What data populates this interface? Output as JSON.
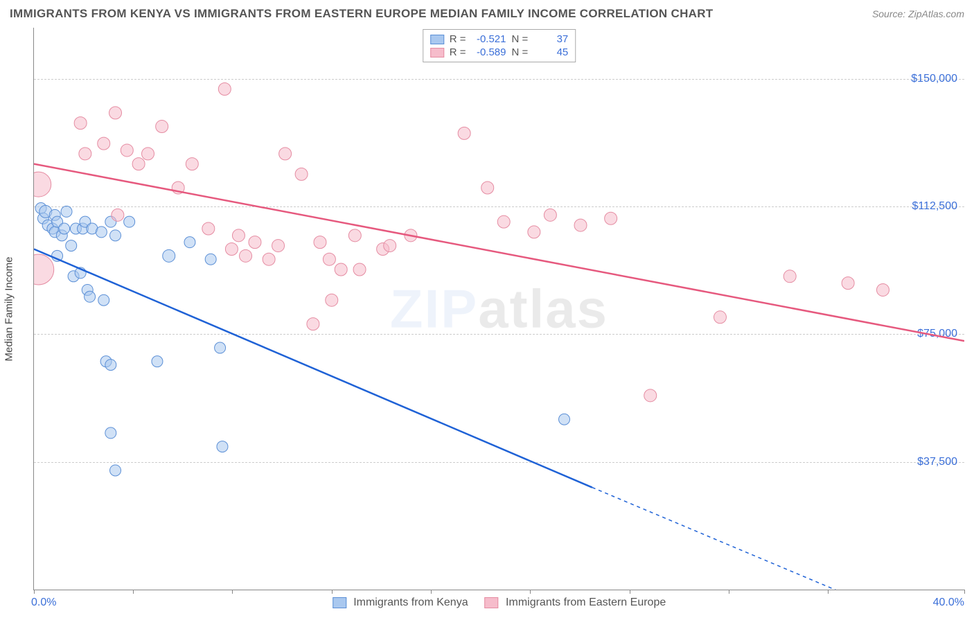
{
  "title": "IMMIGRANTS FROM KENYA VS IMMIGRANTS FROM EASTERN EUROPE MEDIAN FAMILY INCOME CORRELATION CHART",
  "source": "Source: ZipAtlas.com",
  "watermark_a": "ZIP",
  "watermark_b": "atlas",
  "y_axis_title": "Median Family Income",
  "x_min_label": "0.0%",
  "x_max_label": "40.0%",
  "chart": {
    "type": "scatter",
    "xlim": [
      0,
      40
    ],
    "ylim": [
      0,
      165000
    ],
    "y_ticks": [
      37500,
      75000,
      112500,
      150000
    ],
    "y_tick_labels": [
      "$37,500",
      "$75,000",
      "$112,500",
      "$150,000"
    ],
    "x_ticks": [
      0,
      4.27,
      8.53,
      12.8,
      17.07,
      21.33,
      25.6,
      29.87,
      34.13,
      40
    ],
    "grid_color": "#cccccc",
    "axis_color": "#888888",
    "background_color": "#ffffff",
    "title_fontsize": 17,
    "label_fontsize": 16,
    "tick_label_color": "#3b6fd8",
    "series": [
      {
        "name": "Immigrants from Kenya",
        "color_fill": "#a9c8ef",
        "color_stroke": "#5b8fd6",
        "fill_opacity": 0.55,
        "marker_radius": 8,
        "regression": {
          "x1": 0,
          "y1": 100000,
          "x2": 24,
          "y2": 30000,
          "extend_x2": 40,
          "extend_y2": -16000,
          "line_width": 2.5,
          "color": "#1f62d6",
          "dash_extension": "5,5"
        },
        "stats": {
          "r": "-0.521",
          "n": "37"
        },
        "points": [
          {
            "x": 0.3,
            "y": 112000,
            "r": 8
          },
          {
            "x": 0.4,
            "y": 109000,
            "r": 8
          },
          {
            "x": 0.5,
            "y": 111000,
            "r": 9
          },
          {
            "x": 0.6,
            "y": 107000,
            "r": 8
          },
          {
            "x": 0.8,
            "y": 106000,
            "r": 8
          },
          {
            "x": 0.9,
            "y": 110000,
            "r": 8
          },
          {
            "x": 0.9,
            "y": 105000,
            "r": 8
          },
          {
            "x": 1.0,
            "y": 108000,
            "r": 8
          },
          {
            "x": 1.2,
            "y": 104000,
            "r": 8
          },
          {
            "x": 1.3,
            "y": 106000,
            "r": 8
          },
          {
            "x": 1.4,
            "y": 111000,
            "r": 8
          },
          {
            "x": 1.6,
            "y": 101000,
            "r": 8
          },
          {
            "x": 1.8,
            "y": 106000,
            "r": 8
          },
          {
            "x": 2.1,
            "y": 106000,
            "r": 8
          },
          {
            "x": 2.2,
            "y": 108000,
            "r": 8
          },
          {
            "x": 2.5,
            "y": 106000,
            "r": 8
          },
          {
            "x": 2.9,
            "y": 105000,
            "r": 8
          },
          {
            "x": 3.3,
            "y": 108000,
            "r": 8
          },
          {
            "x": 3.5,
            "y": 104000,
            "r": 8
          },
          {
            "x": 4.1,
            "y": 108000,
            "r": 8
          },
          {
            "x": 1.0,
            "y": 98000,
            "r": 8
          },
          {
            "x": 1.7,
            "y": 92000,
            "r": 8
          },
          {
            "x": 2.0,
            "y": 93000,
            "r": 8
          },
          {
            "x": 2.3,
            "y": 88000,
            "r": 8
          },
          {
            "x": 2.4,
            "y": 86000,
            "r": 8
          },
          {
            "x": 3.0,
            "y": 85000,
            "r": 8
          },
          {
            "x": 5.8,
            "y": 98000,
            "r": 9
          },
          {
            "x": 6.7,
            "y": 102000,
            "r": 8
          },
          {
            "x": 7.6,
            "y": 97000,
            "r": 8
          },
          {
            "x": 3.1,
            "y": 67000,
            "r": 8
          },
          {
            "x": 3.3,
            "y": 66000,
            "r": 8
          },
          {
            "x": 5.3,
            "y": 67000,
            "r": 8
          },
          {
            "x": 3.3,
            "y": 46000,
            "r": 8
          },
          {
            "x": 8.1,
            "y": 42000,
            "r": 8
          },
          {
            "x": 8.0,
            "y": 71000,
            "r": 8
          },
          {
            "x": 3.5,
            "y": 35000,
            "r": 8
          },
          {
            "x": 22.8,
            "y": 50000,
            "r": 8
          }
        ]
      },
      {
        "name": "Immigrants from Eastern Europe",
        "color_fill": "#f6bccb",
        "color_stroke": "#e58ca2",
        "fill_opacity": 0.55,
        "marker_radius": 9,
        "regression": {
          "x1": 0,
          "y1": 125000,
          "x2": 40,
          "y2": 73000,
          "line_width": 2.5,
          "color": "#e6597e"
        },
        "stats": {
          "r": "-0.589",
          "n": "45"
        },
        "points": [
          {
            "x": 0.2,
            "y": 119000,
            "r": 18
          },
          {
            "x": 0.2,
            "y": 94000,
            "r": 22
          },
          {
            "x": 2.0,
            "y": 137000,
            "r": 9
          },
          {
            "x": 3.5,
            "y": 140000,
            "r": 9
          },
          {
            "x": 2.2,
            "y": 128000,
            "r": 9
          },
          {
            "x": 3.0,
            "y": 131000,
            "r": 9
          },
          {
            "x": 4.0,
            "y": 129000,
            "r": 9
          },
          {
            "x": 4.5,
            "y": 125000,
            "r": 9
          },
          {
            "x": 4.9,
            "y": 128000,
            "r": 9
          },
          {
            "x": 3.6,
            "y": 110000,
            "r": 9
          },
          {
            "x": 5.5,
            "y": 136000,
            "r": 9
          },
          {
            "x": 6.2,
            "y": 118000,
            "r": 9
          },
          {
            "x": 6.8,
            "y": 125000,
            "r": 9
          },
          {
            "x": 7.5,
            "y": 106000,
            "r": 9
          },
          {
            "x": 8.2,
            "y": 147000,
            "r": 9
          },
          {
            "x": 8.5,
            "y": 100000,
            "r": 9
          },
          {
            "x": 8.8,
            "y": 104000,
            "r": 9
          },
          {
            "x": 9.1,
            "y": 98000,
            "r": 9
          },
          {
            "x": 9.5,
            "y": 102000,
            "r": 9
          },
          {
            "x": 10.1,
            "y": 97000,
            "r": 9
          },
          {
            "x": 10.5,
            "y": 101000,
            "r": 9
          },
          {
            "x": 10.8,
            "y": 128000,
            "r": 9
          },
          {
            "x": 11.5,
            "y": 122000,
            "r": 9
          },
          {
            "x": 12.3,
            "y": 102000,
            "r": 9
          },
          {
            "x": 12.7,
            "y": 97000,
            "r": 9
          },
          {
            "x": 13.2,
            "y": 94000,
            "r": 9
          },
          {
            "x": 13.8,
            "y": 104000,
            "r": 9
          },
          {
            "x": 14.0,
            "y": 94000,
            "r": 9
          },
          {
            "x": 15.0,
            "y": 100000,
            "r": 9
          },
          {
            "x": 15.3,
            "y": 101000,
            "r": 9
          },
          {
            "x": 16.2,
            "y": 104000,
            "r": 9
          },
          {
            "x": 18.5,
            "y": 134000,
            "r": 9
          },
          {
            "x": 19.5,
            "y": 118000,
            "r": 9
          },
          {
            "x": 20.2,
            "y": 108000,
            "r": 9
          },
          {
            "x": 21.5,
            "y": 105000,
            "r": 9
          },
          {
            "x": 22.2,
            "y": 110000,
            "r": 9
          },
          {
            "x": 23.5,
            "y": 107000,
            "r": 9
          },
          {
            "x": 24.8,
            "y": 109000,
            "r": 9
          },
          {
            "x": 12.0,
            "y": 78000,
            "r": 9
          },
          {
            "x": 12.8,
            "y": 85000,
            "r": 9
          },
          {
            "x": 29.5,
            "y": 80000,
            "r": 9
          },
          {
            "x": 26.5,
            "y": 57000,
            "r": 9
          },
          {
            "x": 32.5,
            "y": 92000,
            "r": 9
          },
          {
            "x": 35.0,
            "y": 90000,
            "r": 9
          },
          {
            "x": 36.5,
            "y": 88000,
            "r": 9
          }
        ]
      }
    ]
  },
  "stats_labels": {
    "R": "R =",
    "N": "N ="
  },
  "bottom_legend": {
    "series_a": "Immigrants from Kenya",
    "series_b": "Immigrants from Eastern Europe"
  }
}
